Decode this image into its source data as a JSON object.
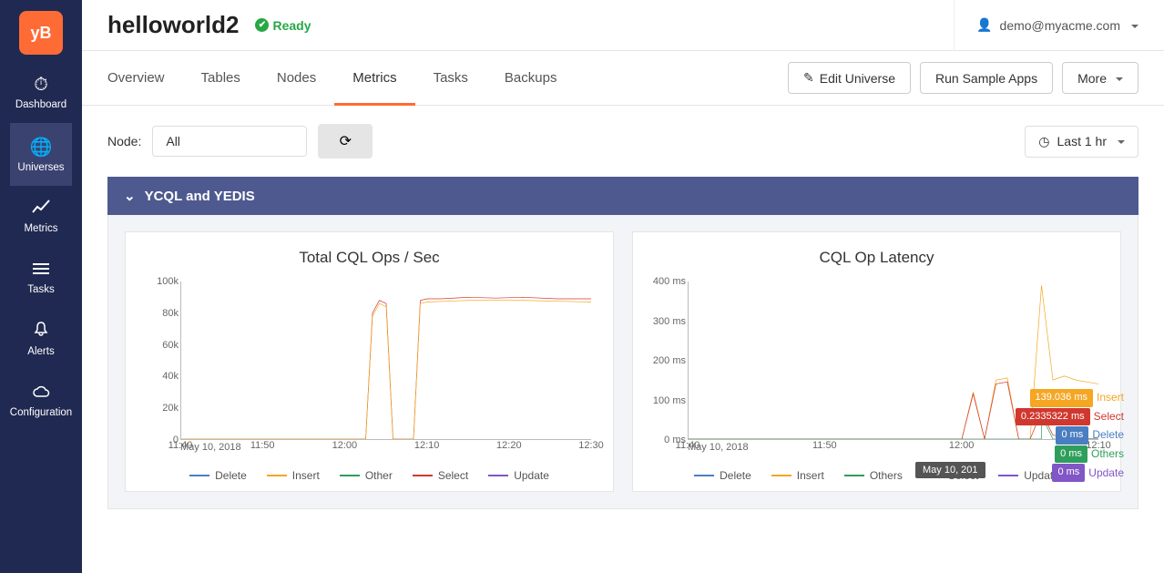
{
  "logo_text": "yB",
  "user_email": "demo@myacme.com",
  "page_title": "helloworld2",
  "status_text": "Ready",
  "sidebar": {
    "items": [
      {
        "label": "Dashboard",
        "icon": "◐"
      },
      {
        "label": "Universes",
        "icon": "◉"
      },
      {
        "label": "Metrics",
        "icon": "📈"
      },
      {
        "label": "Tasks",
        "icon": "☰"
      },
      {
        "label": "Alerts",
        "icon": "🔔"
      },
      {
        "label": "Configuration",
        "icon": "☁"
      }
    ],
    "active_index": 1
  },
  "tabs": {
    "items": [
      "Overview",
      "Tables",
      "Nodes",
      "Metrics",
      "Tasks",
      "Backups"
    ],
    "active_index": 3
  },
  "actions": {
    "edit": "Edit Universe",
    "sample": "Run Sample Apps",
    "more": "More"
  },
  "filters": {
    "node_label": "Node:",
    "node_value": "All",
    "time_range": "Last 1 hr"
  },
  "panel_header": "YCQL and YEDIS",
  "colors": {
    "delete": "#4a7ec1",
    "insert": "#f5a623",
    "other": "#2e9e5b",
    "select": "#d0382f",
    "update": "#8156c6",
    "tooltip_bg": "#555",
    "panel": "#4e5a8f"
  },
  "chart1": {
    "title": "Total CQL Ops / Sec",
    "y_ticks": [
      "100k",
      "80k",
      "60k",
      "40k",
      "20k",
      "0"
    ],
    "y_max": 100000,
    "x_ticks": [
      "11:40",
      "11:50",
      "12:00",
      "12:10",
      "12:20",
      "12:30"
    ],
    "x_start": 700,
    "x_end": 760,
    "date": "May 10, 2018",
    "legend": [
      {
        "key": "delete",
        "label": "Delete"
      },
      {
        "key": "insert",
        "label": "Insert"
      },
      {
        "key": "other",
        "label": "Other"
      },
      {
        "key": "select",
        "label": "Select"
      },
      {
        "key": "update",
        "label": "Update"
      }
    ],
    "series": {
      "select": [
        [
          700,
          0
        ],
        [
          726,
          0
        ],
        [
          727,
          0
        ],
        [
          728,
          80000
        ],
        [
          729,
          88000
        ],
        [
          730,
          86000
        ],
        [
          731,
          0
        ],
        [
          732,
          0
        ],
        [
          733,
          0
        ],
        [
          734,
          0
        ],
        [
          735,
          88000
        ],
        [
          736,
          89000
        ],
        [
          738,
          89000
        ],
        [
          742,
          90000
        ],
        [
          746,
          89500
        ],
        [
          750,
          90000
        ],
        [
          755,
          89000
        ],
        [
          760,
          89000
        ]
      ],
      "insert": [
        [
          700,
          0
        ],
        [
          726,
          0
        ],
        [
          727,
          0
        ],
        [
          728,
          78000
        ],
        [
          729,
          86000
        ],
        [
          730,
          84000
        ],
        [
          731,
          0
        ],
        [
          732,
          0
        ],
        [
          733,
          0
        ],
        [
          734,
          0
        ],
        [
          735,
          86000
        ],
        [
          736,
          87000
        ],
        [
          742,
          88000
        ],
        [
          750,
          88000
        ],
        [
          760,
          87000
        ]
      ]
    }
  },
  "chart2": {
    "title": "CQL Op Latency",
    "y_ticks": [
      "400 ms",
      "300 ms",
      "200 ms",
      "100 ms",
      "0 ms"
    ],
    "y_max": 400,
    "x_ticks": [
      "11:40",
      "11:50",
      "12:00",
      "12:10"
    ],
    "x_start": 700,
    "x_end": 736,
    "date": "May 10, 2018",
    "legend": [
      {
        "key": "delete",
        "label": "Delete"
      },
      {
        "key": "insert",
        "label": "Insert"
      },
      {
        "key": "other",
        "label": "Others"
      },
      {
        "key": "select",
        "label": "Select"
      },
      {
        "key": "update",
        "label": "Update"
      }
    ],
    "series": {
      "insert": [
        [
          700,
          0
        ],
        [
          724,
          0
        ],
        [
          725,
          120
        ],
        [
          726,
          0
        ],
        [
          727,
          150
        ],
        [
          728,
          155
        ],
        [
          729,
          0
        ],
        [
          730,
          0
        ],
        [
          731,
          390
        ],
        [
          732,
          150
        ],
        [
          733,
          160
        ],
        [
          734,
          150
        ],
        [
          735,
          145
        ],
        [
          736,
          140
        ]
      ],
      "select": [
        [
          700,
          0
        ],
        [
          724,
          0
        ],
        [
          725,
          115
        ],
        [
          726,
          0
        ],
        [
          727,
          140
        ],
        [
          728,
          145
        ],
        [
          729,
          0
        ],
        [
          730,
          0
        ],
        [
          731,
          70
        ],
        [
          732,
          10
        ],
        [
          733,
          5
        ],
        [
          734,
          2
        ],
        [
          735,
          1
        ],
        [
          736,
          0.23
        ]
      ],
      "other": [
        [
          700,
          0
        ],
        [
          731,
          0
        ],
        [
          731,
          60
        ],
        [
          732,
          0
        ],
        [
          736,
          0
        ]
      ]
    },
    "tooltip": {
      "time": "May 10, 201",
      "rows": [
        {
          "key": "insert",
          "value": "139.036 ms",
          "label": "Insert"
        },
        {
          "key": "select",
          "value": "0.2335322 ms",
          "label": "Select"
        },
        {
          "key": "delete",
          "value": "0 ms",
          "label": "Delete"
        },
        {
          "key": "other",
          "value": "0 ms",
          "label": "Others"
        },
        {
          "key": "update",
          "value": "0 ms",
          "label": "Update"
        }
      ]
    }
  }
}
